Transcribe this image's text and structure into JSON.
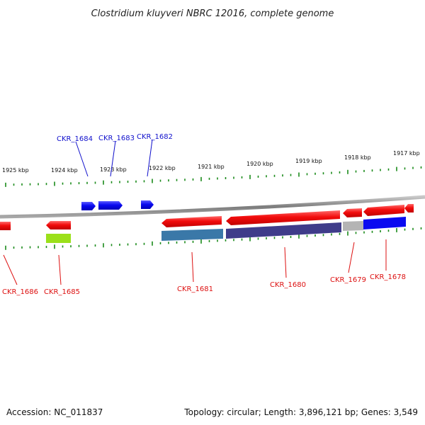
{
  "title": "Clostridium kluyveri NBRC 12016, complete genome",
  "footer": {
    "accession": "Accession: NC_011837",
    "summary": "Topology: circular; Length: 3,896,121 bp; Genes: 3,549"
  },
  "colors": {
    "forward_label": "#1010cc",
    "reverse_label": "#dd1010",
    "tick": "#1a8a1a",
    "backbone": "#8a8a8a",
    "gene_forward": "#0a0af0",
    "gene_reverse": "#f00a0a"
  },
  "kbp_labels": [
    "1925 kbp",
    "1924 kbp",
    "1923 kbp",
    "1922 kbp",
    "1921 kbp",
    "1920 kbp",
    "1919 kbp",
    "1918 kbp",
    "1917 kbp"
  ],
  "genes_forward": [
    {
      "id": "CKR_1684",
      "label": "CKR_1684"
    },
    {
      "id": "CKR_1683",
      "label": "CKR_1683"
    },
    {
      "id": "CKR_1682",
      "label": "CKR_1682"
    }
  ],
  "genes_reverse": [
    {
      "id": "CKR_1686",
      "label": "CKR_1686"
    },
    {
      "id": "CKR_1685",
      "label": "CKR_1685"
    },
    {
      "id": "CKR_1681",
      "label": "CKR_1681"
    },
    {
      "id": "CKR_1680",
      "label": "CKR_1680"
    },
    {
      "id": "CKR_1679",
      "label": "CKR_1679"
    },
    {
      "id": "CKR_1678",
      "label": "CKR_1678"
    }
  ],
  "function_bars": [
    {
      "gene": "CKR_1685",
      "color": "#9be01a"
    },
    {
      "gene": "CKR_1681",
      "color": "#3a78a8"
    },
    {
      "gene": "CKR_1680",
      "color": "#3f3c8a"
    },
    {
      "gene": "CKR_1679",
      "color": "#b4b4b4"
    },
    {
      "gene": "CKR_1678",
      "color": "#0a0af0"
    }
  ]
}
